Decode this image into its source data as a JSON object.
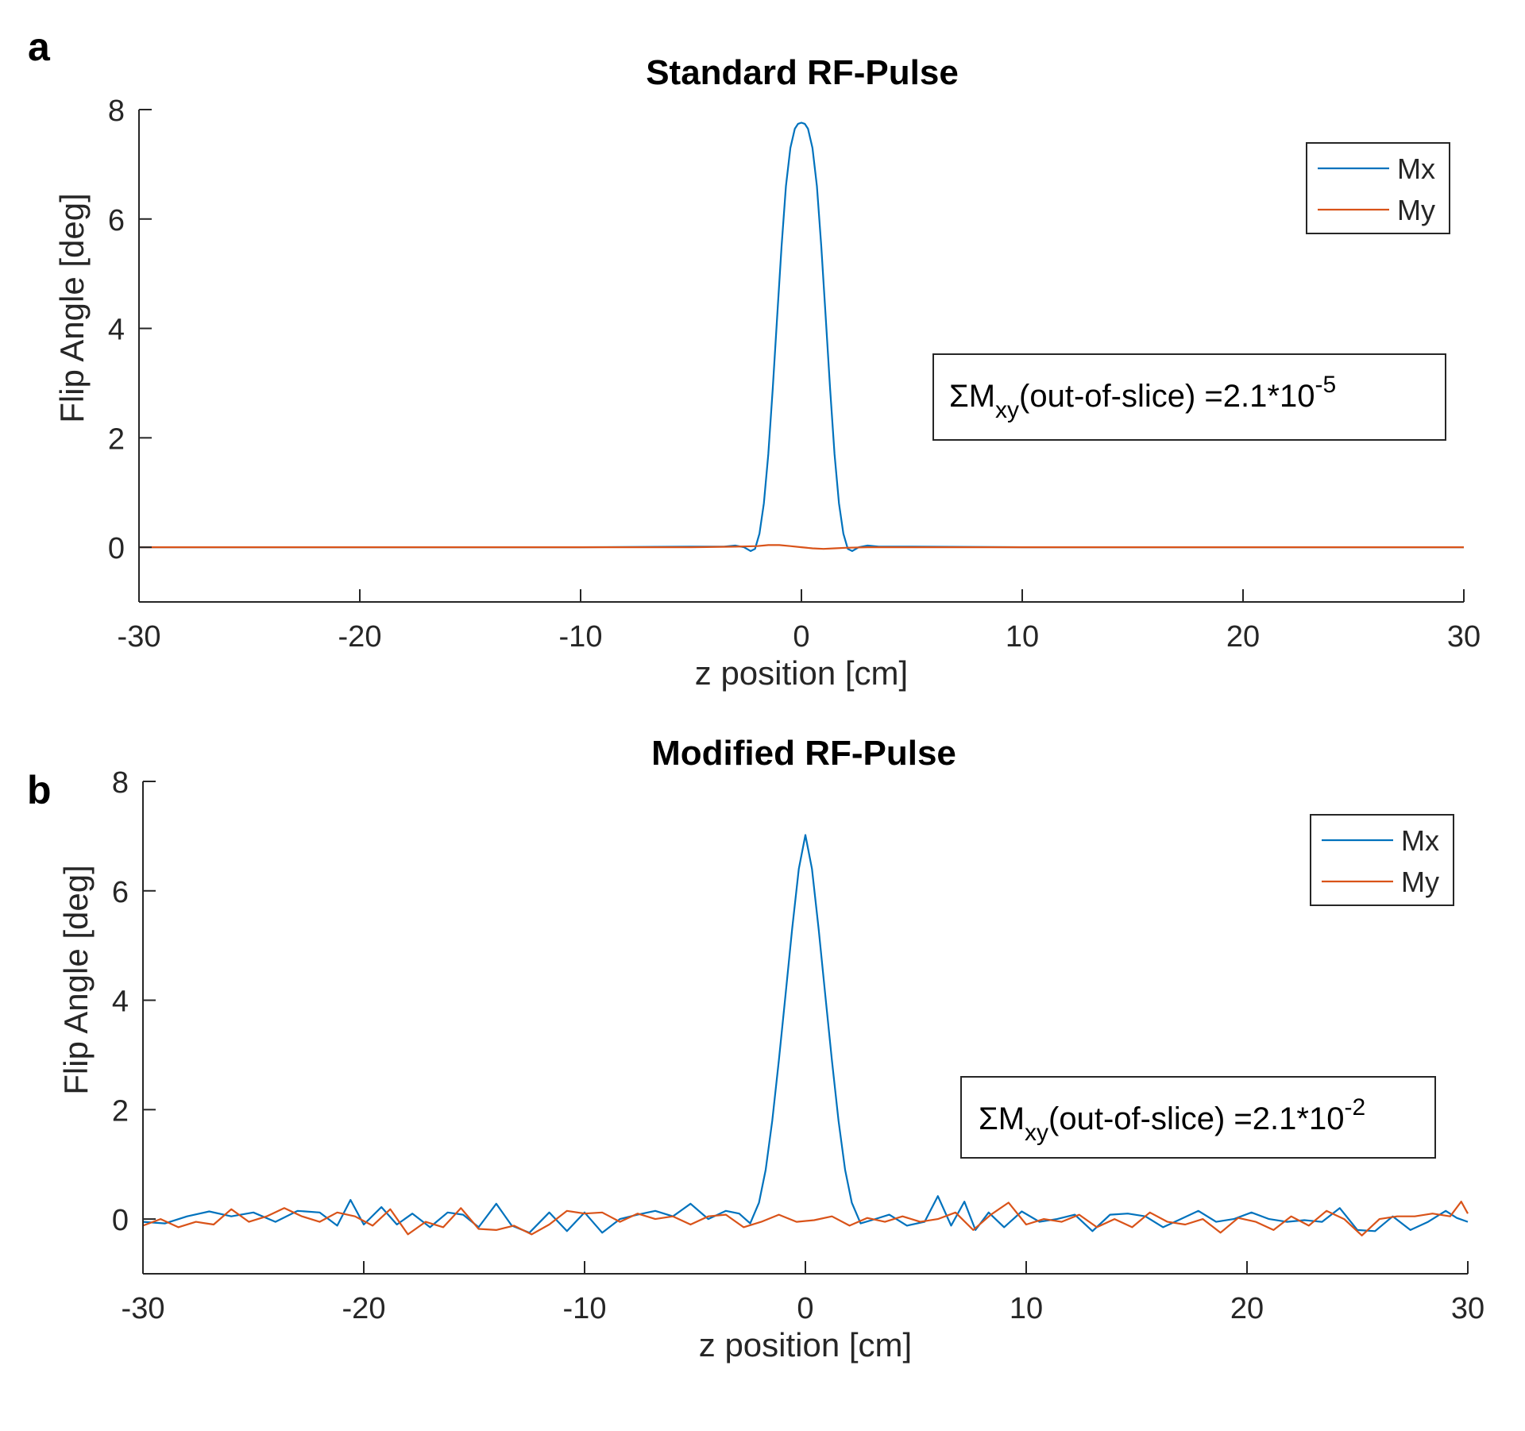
{
  "figure": {
    "panels": [
      {
        "letter": "a",
        "title": "Standard RF-Pulse",
        "annotation": {
          "prefix": "ΣM",
          "subscript": "xy",
          "body": "(out-of-slice) =2.1*10",
          "superscript": "-5"
        }
      },
      {
        "letter": "b",
        "title": "Modified RF-Pulse",
        "annotation": {
          "prefix": "ΣM",
          "subscript": "xy",
          "body": "(out-of-slice) =2.1*10",
          "superscript": "-2"
        }
      }
    ]
  },
  "colors": {
    "mx": "#0072BD",
    "my": "#D95319",
    "axis": "#262626"
  },
  "chart_data": [
    {
      "type": "line",
      "title": "Standard RF-Pulse",
      "xlabel": "z position [cm]",
      "ylabel": "Flip Angle [deg]",
      "xlim": [
        -30,
        30
      ],
      "ylim": [
        -1,
        8
      ],
      "xticks": [
        -30,
        -20,
        -10,
        0,
        10,
        20,
        30
      ],
      "yticks": [
        0,
        2,
        4,
        6,
        8
      ],
      "legend": {
        "position": "top-right",
        "entries": [
          "Mx",
          "My"
        ]
      },
      "series": [
        {
          "name": "Mx",
          "x": [
            -30,
            -10,
            -5,
            -3.5,
            -3,
            -2.6,
            -2.3,
            -2.1,
            -1.9,
            -1.7,
            -1.5,
            -1.3,
            -1.1,
            -0.9,
            -0.7,
            -0.5,
            -0.3,
            -0.15,
            0,
            0.15,
            0.3,
            0.5,
            0.7,
            0.9,
            1.1,
            1.3,
            1.5,
            1.7,
            1.9,
            2.1,
            2.3,
            2.6,
            3,
            3.5,
            5,
            10,
            30
          ],
          "y": [
            0,
            0,
            0.01,
            0.01,
            0.03,
            0,
            -0.07,
            -0.03,
            0.25,
            0.8,
            1.7,
            2.9,
            4.2,
            5.5,
            6.6,
            7.3,
            7.65,
            7.74,
            7.76,
            7.74,
            7.65,
            7.3,
            6.6,
            5.5,
            4.2,
            2.9,
            1.7,
            0.8,
            0.25,
            -0.03,
            -0.07,
            0,
            0.03,
            0.01,
            0.01,
            0,
            0
          ]
        },
        {
          "name": "My",
          "x": [
            -30,
            -5,
            -3,
            -2,
            -1.5,
            -1,
            -0.5,
            0,
            0.5,
            1,
            1.5,
            2,
            3,
            5,
            30
          ],
          "y": [
            0,
            0,
            0.01,
            0.02,
            0.04,
            0.04,
            0.02,
            0,
            -0.02,
            -0.03,
            -0.02,
            -0.01,
            0,
            0,
            0
          ]
        }
      ]
    },
    {
      "type": "line",
      "title": "Modified RF-Pulse",
      "xlabel": "z position [cm]",
      "ylabel": "Flip Angle [deg]",
      "xlim": [
        -30,
        30
      ],
      "ylim": [
        -1,
        8
      ],
      "xticks": [
        -30,
        -20,
        -10,
        0,
        10,
        20,
        30
      ],
      "yticks": [
        0,
        2,
        4,
        6,
        8
      ],
      "legend": {
        "position": "top-right",
        "entries": [
          "Mx",
          "My"
        ]
      },
      "series": [
        {
          "name": "Mx",
          "x": [
            -30,
            -29,
            -28,
            -27,
            -26,
            -25,
            -24,
            -23,
            -22,
            -21.2,
            -20.6,
            -20,
            -19.2,
            -18.5,
            -17.8,
            -17,
            -16.2,
            -15.5,
            -14.8,
            -14,
            -13.3,
            -12.5,
            -11.6,
            -10.8,
            -10,
            -9.2,
            -8.4,
            -7.6,
            -6.8,
            -6,
            -5.2,
            -4.4,
            -3.6,
            -3,
            -2.5,
            -2.1,
            -1.8,
            -1.5,
            -1.2,
            -0.9,
            -0.6,
            -0.3,
            0,
            0.3,
            0.6,
            0.9,
            1.2,
            1.5,
            1.8,
            2.1,
            2.5,
            3,
            3.8,
            4.6,
            5.4,
            6,
            6.6,
            7.2,
            7.7,
            8.3,
            9,
            9.8,
            10.6,
            11.4,
            12.2,
            13,
            13.8,
            14.6,
            15.4,
            16.2,
            17,
            17.8,
            18.6,
            19.4,
            20.2,
            21,
            21.8,
            22.6,
            23.4,
            24.2,
            25,
            25.8,
            26.6,
            27.4,
            28.2,
            29,
            29.5,
            30
          ],
          "y": [
            -0.05,
            -0.08,
            0.05,
            0.14,
            0.05,
            0.12,
            -0.05,
            0.15,
            0.12,
            -0.12,
            0.35,
            -0.1,
            0.22,
            -0.1,
            0.1,
            -0.15,
            0.12,
            0.08,
            -0.15,
            0.28,
            -0.12,
            -0.25,
            0.12,
            -0.22,
            0.12,
            -0.25,
            0.0,
            0.08,
            0.15,
            0.05,
            0.28,
            0.0,
            0.15,
            0.1,
            -0.08,
            0.3,
            0.9,
            1.8,
            2.9,
            4.1,
            5.3,
            6.4,
            7.02,
            6.4,
            5.3,
            4.1,
            2.9,
            1.8,
            0.9,
            0.3,
            -0.08,
            -0.02,
            0.08,
            -0.12,
            -0.05,
            0.42,
            -0.12,
            0.32,
            -0.2,
            0.12,
            -0.15,
            0.14,
            -0.05,
            0.0,
            0.08,
            -0.22,
            0.08,
            0.1,
            0.05,
            -0.15,
            0.0,
            0.15,
            -0.05,
            0.0,
            0.12,
            0.0,
            -0.05,
            -0.02,
            -0.05,
            0.2,
            -0.2,
            -0.22,
            0.05,
            -0.2,
            -0.05,
            0.15,
            0.02,
            -0.05
          ]
        },
        {
          "name": "My",
          "x": [
            -30,
            -29.2,
            -28.4,
            -27.6,
            -26.8,
            -26,
            -25.2,
            -24.4,
            -23.6,
            -22.8,
            -22,
            -21.2,
            -20.4,
            -19.6,
            -18.8,
            -18,
            -17.2,
            -16.4,
            -15.6,
            -14.8,
            -14,
            -13.2,
            -12.4,
            -11.6,
            -10.8,
            -10,
            -9.2,
            -8.4,
            -7.6,
            -6.8,
            -6,
            -5.2,
            -4.4,
            -3.6,
            -2.8,
            -2,
            -1.2,
            -0.4,
            0.4,
            1.2,
            2,
            2.8,
            3.6,
            4.4,
            5.2,
            6,
            6.8,
            7.6,
            8.4,
            9.2,
            10,
            10.8,
            11.6,
            12.4,
            13.2,
            14,
            14.8,
            15.6,
            16.4,
            17.2,
            18,
            18.8,
            19.6,
            20.4,
            21.2,
            22,
            22.8,
            23.6,
            24.4,
            25.2,
            26,
            26.8,
            27.6,
            28.4,
            29.2,
            29.7,
            30
          ],
          "y": [
            -0.12,
            0.0,
            -0.15,
            -0.05,
            -0.1,
            0.18,
            -0.05,
            0.05,
            0.2,
            0.05,
            -0.05,
            0.12,
            0.05,
            -0.12,
            0.18,
            -0.28,
            -0.05,
            -0.15,
            0.2,
            -0.18,
            -0.2,
            -0.12,
            -0.28,
            -0.1,
            0.15,
            0.1,
            0.12,
            -0.05,
            0.1,
            0.0,
            0.05,
            -0.1,
            0.05,
            0.08,
            -0.15,
            -0.05,
            0.08,
            -0.05,
            -0.02,
            0.05,
            -0.12,
            0.02,
            -0.05,
            0.05,
            -0.05,
            0.0,
            0.12,
            -0.2,
            0.08,
            0.3,
            -0.1,
            0.0,
            -0.05,
            0.08,
            -0.15,
            0.0,
            -0.15,
            0.12,
            -0.05,
            -0.1,
            0.0,
            -0.25,
            0.02,
            -0.05,
            -0.2,
            0.05,
            -0.12,
            0.15,
            0.0,
            -0.3,
            0.0,
            0.05,
            0.05,
            0.1,
            0.05,
            0.32,
            0.1
          ]
        }
      ]
    }
  ]
}
